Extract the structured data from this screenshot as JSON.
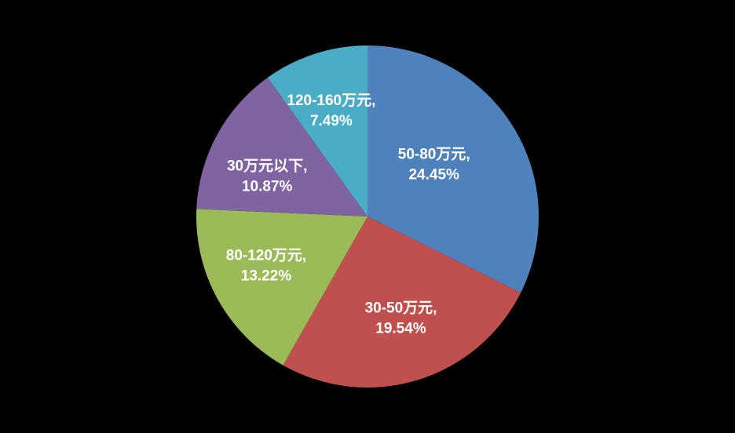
{
  "background_color": "#000000",
  "chart_data": {
    "type": "pie",
    "title": "",
    "categories": [
      "50-80万元",
      "30-50万元",
      "80-120万元",
      "30万元以下",
      "120-160万元"
    ],
    "values": [
      24.45,
      19.54,
      13.22,
      10.87,
      7.49
    ],
    "colors": [
      "#4F81BD",
      "#C0504D",
      "#9BBB59",
      "#8064A2",
      "#4BACC6"
    ],
    "data_labels": [
      "50-80万元, 24.45%",
      "30-50万元, 19.54%",
      "80-120万元, 13.22%",
      "30万元以下, 10.87%",
      "120-160万元, 7.49%"
    ],
    "value_suffix": "%",
    "value_decimals": 2,
    "label_text_color": "#FFFFFF",
    "values_sum": 75.57,
    "normalized_to_sum": true,
    "start_angle_deg": 0,
    "direction": "clockwise",
    "legend": "none",
    "data_labels_position": "inside"
  }
}
